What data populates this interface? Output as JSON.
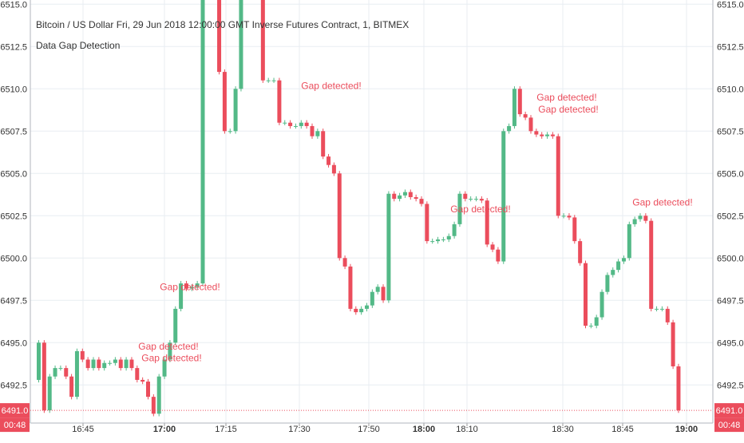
{
  "chart_data": {
    "type": "candlestick",
    "title": "Bitcoin / US Dollar Fri, 29 Jun 2018 12:00:00 GMT Inverse Futures Contract, 1, BITMEX",
    "indicator": "Data Gap Detection",
    "ylim": [
      6490.25,
      6515.25
    ],
    "y_ticks": [
      "6492.5",
      "6495.0",
      "6497.5",
      "6500.0",
      "6502.5",
      "6505.0",
      "6507.5",
      "6510.0",
      "6512.5",
      "6515.0"
    ],
    "x_ticks": [
      {
        "label": "16:45",
        "bold": false
      },
      {
        "label": "17:00",
        "bold": true
      },
      {
        "label": "17:15",
        "bold": false
      },
      {
        "label": "17:30",
        "bold": false
      },
      {
        "label": "17:50",
        "bold": false
      },
      {
        "label": "18:00",
        "bold": true
      },
      {
        "label": "18:10",
        "bold": false
      },
      {
        "label": "18:30",
        "bold": false
      },
      {
        "label": "18:45",
        "bold": false
      },
      {
        "label": "19:00",
        "bold": true
      }
    ],
    "annotation_text": "Gap detected!",
    "last_price": "6491.0",
    "countdown": "00:48",
    "colors": {
      "up": "#53b987",
      "down": "#eb4d5c",
      "gap_text": "#eb4d5c",
      "badge": "#eb4d5c",
      "grid": "#e8edf2",
      "axis_text": "#333333"
    }
  }
}
